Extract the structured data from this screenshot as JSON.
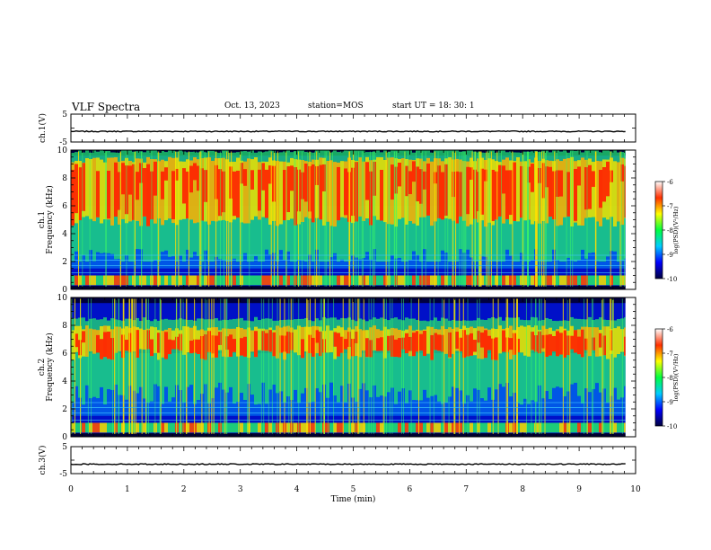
{
  "header": {
    "title": "VLF Spectra",
    "date": "Oct. 13, 2023",
    "station": "station=MOS",
    "start": "start  UT =   18: 30: 1"
  },
  "chart_data": [
    {
      "type": "line",
      "panel": "ch1-waveform",
      "ylabel": "ch.1(V)",
      "ylim": [
        -5,
        5
      ],
      "y_ticks": [
        "5",
        "-5"
      ],
      "x": [
        0,
        9.82
      ],
      "series": [
        {
          "values": [
            -1.2,
            -1.2
          ]
        }
      ]
    },
    {
      "type": "heatmap",
      "panel": "ch1-spectrogram",
      "ylabel_line1": "ch.1",
      "ylabel_line2": "Frequency (kHz)",
      "ylim": [
        0,
        10
      ],
      "y_ticks": [
        "0",
        "2",
        "4",
        "6",
        "8",
        "10"
      ],
      "xlim": [
        0,
        10
      ],
      "data_extent_min": 9.82,
      "dominant_bands_khz": [
        [
          0.3,
          1.0
        ],
        [
          4.5,
          9.5
        ]
      ],
      "colorbar": {
        "label": "log(PSD)(V²/Hz)",
        "range": [
          -10,
          -6
        ],
        "ticks": [
          "-6",
          "-7",
          "-8",
          "-9",
          "-10"
        ],
        "colors": [
          "#000040",
          "#0000ff",
          "#00ccff",
          "#00ff40",
          "#ffff00",
          "#ff3000",
          "#ffffff"
        ]
      }
    },
    {
      "type": "heatmap",
      "panel": "ch2-spectrogram",
      "ylabel_line1": "ch.2",
      "ylabel_line2": "Frequency (kHz)",
      "ylim": [
        0,
        10
      ],
      "y_ticks": [
        "0",
        "2",
        "4",
        "6",
        "8",
        "10"
      ],
      "xlim": [
        0,
        10
      ],
      "data_extent_min": 9.82,
      "dominant_bands_khz": [
        [
          0.3,
          1.0
        ],
        [
          5.5,
          8.0
        ]
      ],
      "colorbar": {
        "label": "log(PSD)(V²/Hz)",
        "range": [
          -10,
          -6
        ],
        "ticks": [
          "-6",
          "-7",
          "-8",
          "-9",
          "-10"
        ],
        "colors": [
          "#000040",
          "#0000ff",
          "#00ccff",
          "#00ff40",
          "#ffff00",
          "#ff3000",
          "#ffffff"
        ]
      }
    },
    {
      "type": "line",
      "panel": "ch3-waveform",
      "ylabel": "ch.3(V)",
      "ylim": [
        -5,
        5
      ],
      "y_ticks": [
        "5",
        "-5"
      ],
      "x": [
        0,
        9.82
      ],
      "series": [
        {
          "values": [
            -1.5,
            -1.5
          ]
        }
      ]
    }
  ],
  "xaxis": {
    "label": "Time (min)",
    "range": [
      0,
      10
    ],
    "ticks": [
      "0",
      "1",
      "2",
      "3",
      "4",
      "5",
      "6",
      "7",
      "8",
      "9",
      "10"
    ]
  }
}
